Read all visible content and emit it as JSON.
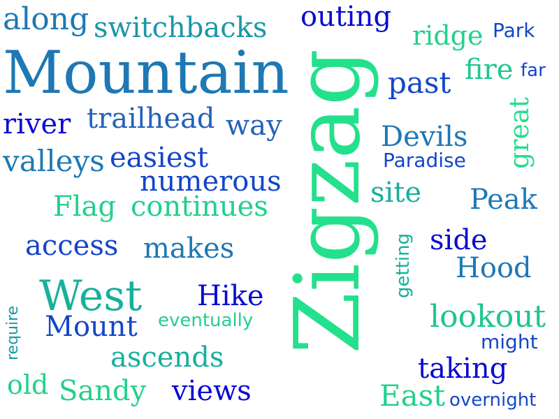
{
  "colors": {
    "dark_blue": "#0a0ad2",
    "royal_blue": "#1446c8",
    "medium_blue": "#2363b8",
    "steel_blue": "#1e78b4",
    "teal_blue": "#1897a8",
    "teal": "#17b09c",
    "sea_green": "#1ec690",
    "mint": "#2be08c",
    "background": "#ffffff"
  },
  "words": [
    {
      "text": "Zigzag",
      "color": "#23e08c"
    },
    {
      "text": "Mountain",
      "color": "#1e78b4"
    },
    {
      "text": "along",
      "color": "#1e78b4"
    },
    {
      "text": "switchbacks",
      "color": "#1897a8"
    },
    {
      "text": "outing",
      "color": "#0a0ad2"
    },
    {
      "text": "ridge",
      "color": "#23d08c"
    },
    {
      "text": "Park",
      "color": "#1446c8"
    },
    {
      "text": "fire",
      "color": "#1ec690"
    },
    {
      "text": "far",
      "color": "#1446c8"
    },
    {
      "text": "past",
      "color": "#1446c8"
    },
    {
      "text": "river",
      "color": "#0a0ad2"
    },
    {
      "text": "trailhead",
      "color": "#2363b8"
    },
    {
      "text": "way",
      "color": "#2363b8"
    },
    {
      "text": "great",
      "color": "#23e08c"
    },
    {
      "text": "Devils",
      "color": "#1e78b4"
    },
    {
      "text": "Paradise",
      "color": "#1446c8"
    },
    {
      "text": "valleys",
      "color": "#1e78b4"
    },
    {
      "text": "easiest",
      "color": "#1446c8"
    },
    {
      "text": "numerous",
      "color": "#1446c8"
    },
    {
      "text": "site",
      "color": "#17b09c"
    },
    {
      "text": "Peak",
      "color": "#1e78b4"
    },
    {
      "text": "Flag",
      "color": "#23d08c"
    },
    {
      "text": "continues",
      "color": "#23d08c"
    },
    {
      "text": "access",
      "color": "#1446c8"
    },
    {
      "text": "makes",
      "color": "#1e78b4"
    },
    {
      "text": "getting",
      "color": "#17b09c"
    },
    {
      "text": "side",
      "color": "#0a0ad2"
    },
    {
      "text": "Hood",
      "color": "#1e78b4"
    },
    {
      "text": "require",
      "color": "#1897a8"
    },
    {
      "text": "West",
      "color": "#17b09c"
    },
    {
      "text": "Hike",
      "color": "#0a0ad2"
    },
    {
      "text": "Mount",
      "color": "#1446c8"
    },
    {
      "text": "eventually",
      "color": "#23d08c"
    },
    {
      "text": "lookout",
      "color": "#1ec690"
    },
    {
      "text": "might",
      "color": "#1446c8"
    },
    {
      "text": "ascends",
      "color": "#17b09c"
    },
    {
      "text": "taking",
      "color": "#0a0ad2"
    },
    {
      "text": "old",
      "color": "#23d08c"
    },
    {
      "text": "Sandy",
      "color": "#23d08c"
    },
    {
      "text": "views",
      "color": "#0a0ad2"
    },
    {
      "text": "East",
      "color": "#23d08c"
    },
    {
      "text": "overnight",
      "color": "#1446c8"
    }
  ]
}
